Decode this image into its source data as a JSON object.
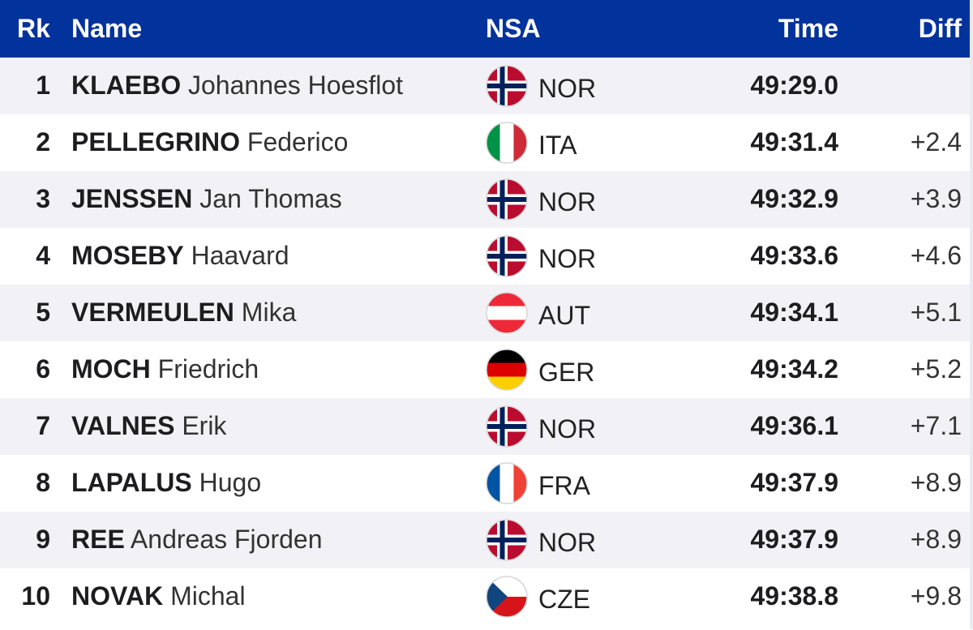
{
  "header": {
    "rank": "Rk",
    "name": "Name",
    "nsa": "NSA",
    "time": "Time",
    "diff": "Diff",
    "background": "#02329b"
  },
  "rows": [
    {
      "rank": "1",
      "last": "KLAEBO",
      "first": "Johannes Hoesflot",
      "nsa": "NOR",
      "flag": "norway-flag-icon",
      "time": "49:29.0",
      "diff": ""
    },
    {
      "rank": "2",
      "last": "PELLEGRINO",
      "first": "Federico",
      "nsa": "ITA",
      "flag": "italy-flag-icon",
      "time": "49:31.4",
      "diff": "+2.4"
    },
    {
      "rank": "3",
      "last": "JENSSEN",
      "first": "Jan Thomas",
      "nsa": "NOR",
      "flag": "norway-flag-icon",
      "time": "49:32.9",
      "diff": "+3.9"
    },
    {
      "rank": "4",
      "last": "MOSEBY",
      "first": "Haavard",
      "nsa": "NOR",
      "flag": "norway-flag-icon",
      "time": "49:33.6",
      "diff": "+4.6"
    },
    {
      "rank": "5",
      "last": "VERMEULEN",
      "first": "Mika",
      "nsa": "AUT",
      "flag": "austria-flag-icon",
      "time": "49:34.1",
      "diff": "+5.1"
    },
    {
      "rank": "6",
      "last": "MOCH",
      "first": "Friedrich",
      "nsa": "GER",
      "flag": "germany-flag-icon",
      "time": "49:34.2",
      "diff": "+5.2"
    },
    {
      "rank": "7",
      "last": "VALNES",
      "first": "Erik",
      "nsa": "NOR",
      "flag": "norway-flag-icon",
      "time": "49:36.1",
      "diff": "+7.1"
    },
    {
      "rank": "8",
      "last": "LAPALUS",
      "first": "Hugo",
      "nsa": "FRA",
      "flag": "france-flag-icon",
      "time": "49:37.9",
      "diff": "+8.9"
    },
    {
      "rank": "9",
      "last": "REE",
      "first": "Andreas Fjorden",
      "nsa": "NOR",
      "flag": "norway-flag-icon",
      "time": "49:37.9",
      "diff": "+8.9"
    },
    {
      "rank": "10",
      "last": "NOVAK",
      "first": "Michal",
      "nsa": "CZE",
      "flag": "czech-flag-icon",
      "time": "49:38.8",
      "diff": "+9.8"
    }
  ]
}
